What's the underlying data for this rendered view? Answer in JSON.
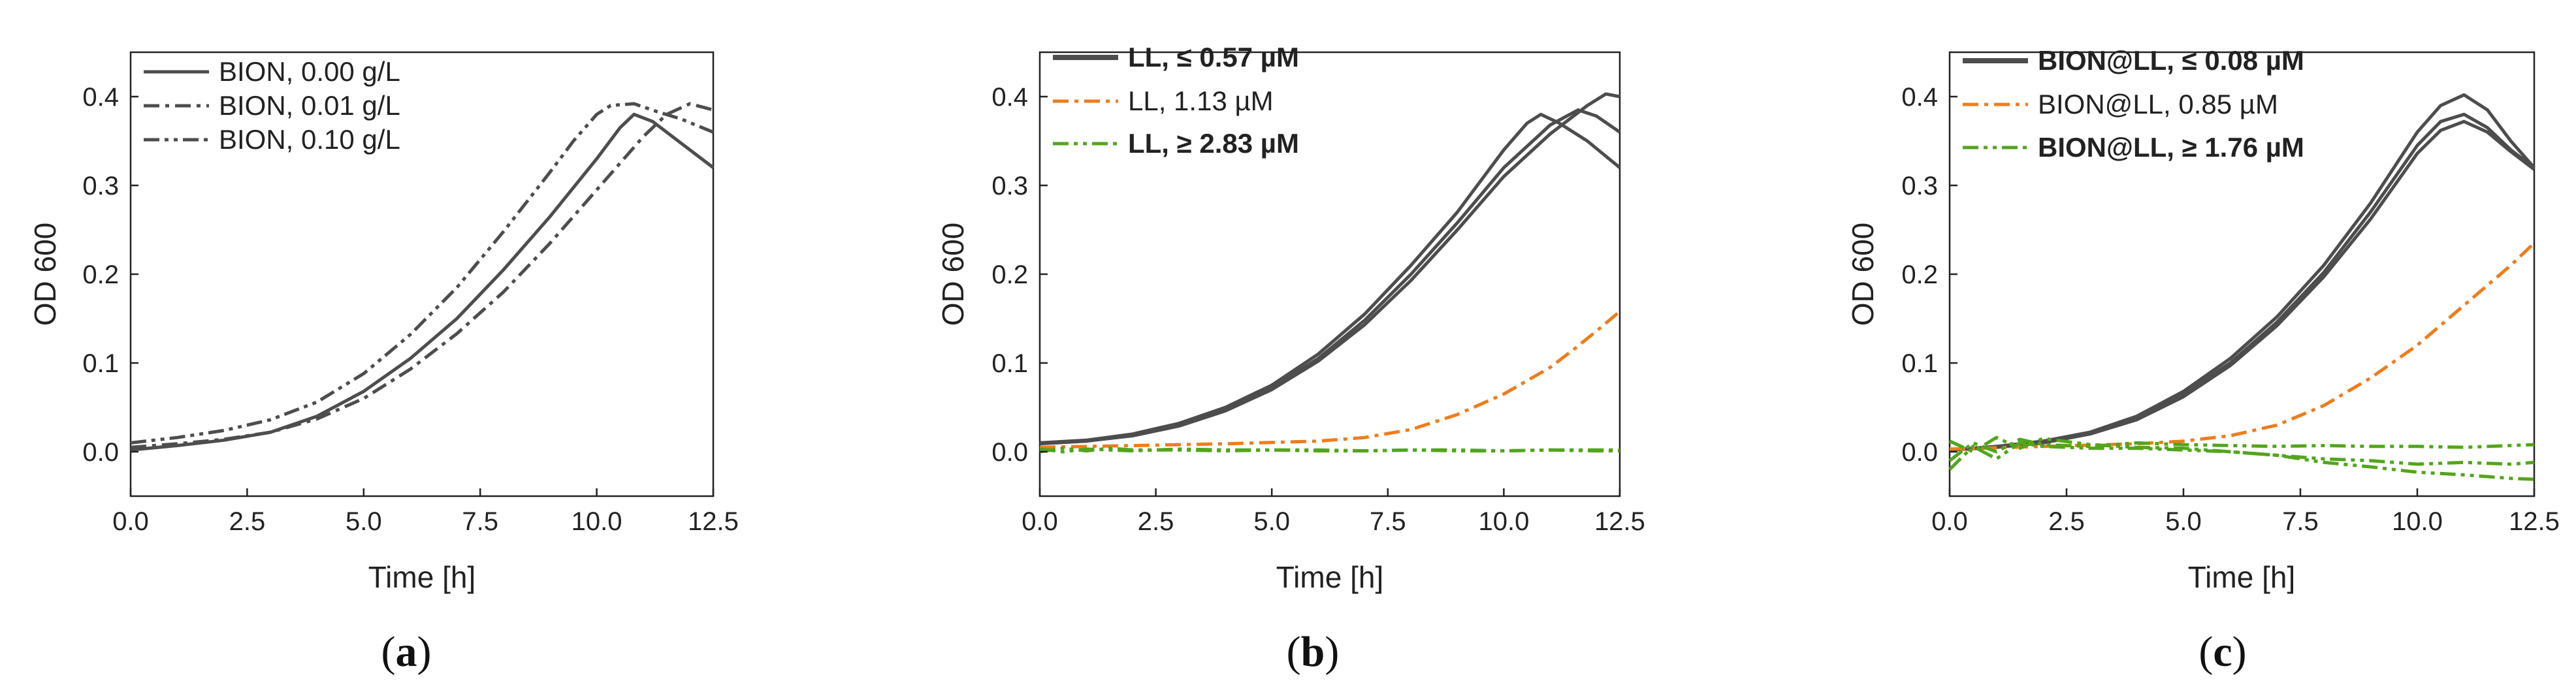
{
  "chart_data": [
    {
      "type": "line",
      "panel": "a",
      "xlabel": "Time [h]",
      "ylabel": "OD 600",
      "xlim": [
        0,
        12.5
      ],
      "ylim": [
        -0.05,
        0.45
      ],
      "xticks": [
        0,
        2.5,
        5,
        7.5,
        10,
        12.5
      ],
      "xtick_labels": [
        "0.0",
        "2.5",
        "5.0",
        "7.5",
        "10.0",
        "12.5"
      ],
      "yticks": [
        0,
        0.1,
        0.2,
        0.3,
        0.4
      ],
      "ytick_labels": [
        "0.0",
        "0.1",
        "0.2",
        "0.3",
        "0.4"
      ],
      "legend_position": "top-left",
      "series": [
        {
          "name": "BION, 0.00 g/L",
          "color": "#4d4d4d",
          "dash": "solid",
          "x": [
            0,
            1,
            2,
            3,
            4,
            5,
            6,
            7,
            8,
            9,
            10,
            10.5,
            10.8,
            11.2,
            11.8,
            12.5
          ],
          "y": [
            0.002,
            0.007,
            0.013,
            0.022,
            0.04,
            0.068,
            0.105,
            0.15,
            0.205,
            0.265,
            0.33,
            0.365,
            0.38,
            0.372,
            0.348,
            0.32
          ]
        },
        {
          "name": "BION, 0.01 g/L",
          "color": "#4d4d4d",
          "dash": "dashdot",
          "x": [
            0,
            1,
            2,
            3,
            4,
            5,
            6,
            7,
            8,
            9,
            10,
            11,
            11.5,
            12,
            12.5
          ],
          "y": [
            0.005,
            0.009,
            0.014,
            0.022,
            0.037,
            0.06,
            0.093,
            0.133,
            0.18,
            0.235,
            0.295,
            0.355,
            0.38,
            0.392,
            0.385
          ]
        },
        {
          "name": "BION, 0.10 g/L",
          "color": "#4d4d4d",
          "dash": "dashdotdot",
          "x": [
            0,
            1,
            2,
            3,
            4,
            5,
            6,
            7,
            8,
            9,
            9.5,
            10,
            10.3,
            10.8,
            11.3,
            11.8,
            12.5
          ],
          "y": [
            0.01,
            0.016,
            0.024,
            0.036,
            0.056,
            0.088,
            0.132,
            0.185,
            0.248,
            0.315,
            0.35,
            0.38,
            0.39,
            0.392,
            0.383,
            0.375,
            0.36
          ]
        }
      ]
    },
    {
      "type": "line",
      "panel": "b",
      "xlabel": "Time [h]",
      "ylabel": "OD 600",
      "xlim": [
        0,
        12.5
      ],
      "ylim": [
        -0.05,
        0.45
      ],
      "xticks": [
        0,
        2.5,
        5,
        7.5,
        10,
        12.5
      ],
      "xtick_labels": [
        "0.0",
        "2.5",
        "5.0",
        "7.5",
        "10.0",
        "12.5"
      ],
      "yticks": [
        0,
        0.1,
        0.2,
        0.3,
        0.4
      ],
      "ytick_labels": [
        "0.0",
        "0.1",
        "0.2",
        "0.3",
        "0.4"
      ],
      "legend_position": "top-left",
      "series": [
        {
          "name": "LL, ≤ 0.57 µM",
          "color": "#4d4d4d",
          "dash": "solid",
          "bold": true,
          "x": [
            0,
            1,
            2,
            3,
            4,
            5,
            6,
            7,
            8,
            9,
            10,
            10.5,
            10.8,
            11.2,
            11.8,
            12.5
          ],
          "y": [
            0.01,
            0.013,
            0.02,
            0.032,
            0.05,
            0.075,
            0.11,
            0.155,
            0.21,
            0.27,
            0.34,
            0.37,
            0.38,
            0.37,
            0.35,
            0.32
          ]
        },
        {
          "name": "",
          "color": "#4d4d4d",
          "dash": "solid",
          "x": [
            0,
            1,
            2,
            3,
            4,
            5,
            6,
            7,
            8,
            9,
            10,
            11,
            11.6,
            12,
            12.5
          ],
          "y": [
            0.01,
            0.012,
            0.019,
            0.03,
            0.048,
            0.072,
            0.105,
            0.148,
            0.2,
            0.258,
            0.32,
            0.368,
            0.385,
            0.378,
            0.36
          ]
        },
        {
          "name": "",
          "color": "#4d4d4d",
          "dash": "solid",
          "x": [
            0,
            1,
            2,
            3,
            4,
            5,
            6,
            7,
            8,
            9,
            10,
            11,
            11.8,
            12.2,
            12.5
          ],
          "y": [
            0.009,
            0.012,
            0.018,
            0.029,
            0.046,
            0.07,
            0.102,
            0.143,
            0.193,
            0.25,
            0.31,
            0.358,
            0.39,
            0.403,
            0.4
          ]
        },
        {
          "name": "LL, 1.13 µM",
          "color": "#ee7d1c",
          "dash": "dashdot",
          "x": [
            0,
            2,
            4,
            6,
            7,
            8,
            9,
            10,
            11,
            11.5,
            12,
            12.5
          ],
          "y": [
            0.005,
            0.007,
            0.009,
            0.012,
            0.016,
            0.025,
            0.042,
            0.065,
            0.095,
            0.115,
            0.136,
            0.158
          ]
        },
        {
          "name": "LL, ≥ 2.83 µM",
          "color": "#52a51c",
          "dash": "dashdotdot",
          "bold": true,
          "x": [
            0,
            0.5,
            1,
            1.5,
            2,
            3,
            4,
            5,
            6,
            7,
            8,
            9,
            10,
            11,
            12,
            12.5
          ],
          "y": [
            0.0,
            0.004,
            0.001,
            0.004,
            0.002,
            0.002,
            0.001,
            0.002,
            0.001,
            0.001,
            0.002,
            0.001,
            0.001,
            0.002,
            0.001,
            0.001
          ]
        },
        {
          "name": "",
          "color": "#52a51c",
          "dash": "dashdotdot",
          "x": [
            0,
            0.5,
            1,
            2,
            3,
            4,
            5,
            6,
            7,
            8,
            9,
            10,
            11,
            12,
            12.5
          ],
          "y": [
            0.003,
            0.0,
            0.003,
            0.001,
            0.003,
            0.002,
            0.002,
            0.002,
            0.001,
            0.002,
            0.002,
            0.001,
            0.002,
            0.002,
            0.002
          ]
        }
      ]
    },
    {
      "type": "line",
      "panel": "c",
      "xlabel": "Time [h]",
      "ylabel": "OD 600",
      "xlim": [
        0,
        12.5
      ],
      "ylim": [
        -0.05,
        0.45
      ],
      "xticks": [
        0,
        2.5,
        5,
        7.5,
        10,
        12.5
      ],
      "xtick_labels": [
        "0.0",
        "2.5",
        "5.0",
        "7.5",
        "10.0",
        "12.5"
      ],
      "yticks": [
        0,
        0.1,
        0.2,
        0.3,
        0.4
      ],
      "ytick_labels": [
        "0.0",
        "0.1",
        "0.2",
        "0.3",
        "0.4"
      ],
      "legend_position": "top-left",
      "series": [
        {
          "name": "BION@LL, ≤ 0.08 µM",
          "color": "#4d4d4d",
          "dash": "solid",
          "bold": true,
          "x": [
            0,
            1,
            2,
            3,
            4,
            5,
            6,
            7,
            8,
            9,
            10,
            10.5,
            11,
            11.5,
            12,
            12.5
          ],
          "y": [
            0.002,
            0.006,
            0.012,
            0.022,
            0.04,
            0.068,
            0.105,
            0.152,
            0.21,
            0.28,
            0.36,
            0.39,
            0.402,
            0.385,
            0.35,
            0.32
          ]
        },
        {
          "name": "",
          "color": "#4d4d4d",
          "dash": "solid",
          "x": [
            0,
            1,
            2,
            3,
            4,
            5,
            6,
            7,
            8,
            9,
            10,
            10.5,
            11,
            11.5,
            12,
            12.5
          ],
          "y": [
            0.002,
            0.005,
            0.011,
            0.021,
            0.038,
            0.065,
            0.1,
            0.146,
            0.202,
            0.27,
            0.345,
            0.372,
            0.38,
            0.365,
            0.34,
            0.32
          ]
        },
        {
          "name": "",
          "color": "#4d4d4d",
          "dash": "solid",
          "x": [
            0,
            1,
            2,
            3,
            4,
            5,
            6,
            7,
            8,
            9,
            10,
            10.5,
            11,
            11.5,
            12,
            12.5
          ],
          "y": [
            0.002,
            0.005,
            0.01,
            0.02,
            0.036,
            0.062,
            0.097,
            0.142,
            0.197,
            0.262,
            0.336,
            0.362,
            0.372,
            0.36,
            0.338,
            0.318
          ]
        },
        {
          "name": "BION@LL, 0.85 µM",
          "color": "#ee7d1c",
          "dash": "dashdot",
          "x": [
            0,
            2,
            4,
            5,
            6,
            7,
            8,
            9,
            10,
            11,
            12,
            12.5
          ],
          "y": [
            0.003,
            0.006,
            0.009,
            0.012,
            0.018,
            0.03,
            0.052,
            0.083,
            0.12,
            0.165,
            0.21,
            0.235
          ]
        },
        {
          "name": "BION@LL, ≥ 1.76 µM",
          "color": "#52a51c",
          "dash": "dashdotdot",
          "bold": true,
          "x": [
            0,
            0.5,
            1,
            1.5,
            2,
            3,
            4,
            5,
            6,
            7,
            8,
            9,
            10,
            11,
            12,
            12.5
          ],
          "y": [
            -0.01,
            0.01,
            0.0,
            0.014,
            0.008,
            0.006,
            0.01,
            0.008,
            0.007,
            0.006,
            0.007,
            0.006,
            0.006,
            0.005,
            0.007,
            0.008
          ]
        },
        {
          "name": "",
          "color": "#52a51c",
          "dash": "dashdotdot",
          "x": [
            0,
            0.5,
            1,
            1.5,
            2,
            3,
            4,
            5,
            6,
            7,
            8,
            9,
            10,
            11,
            12,
            12.5
          ],
          "y": [
            0.012,
            0.0,
            0.016,
            0.004,
            0.015,
            0.008,
            0.005,
            0.004,
            0.0,
            -0.004,
            -0.008,
            -0.01,
            -0.014,
            -0.012,
            -0.014,
            -0.012
          ]
        },
        {
          "name": "",
          "color": "#52a51c",
          "dash": "dashdotdot",
          "x": [
            0,
            0.5,
            1,
            1.5,
            2,
            3,
            4,
            5,
            6,
            7,
            8,
            9,
            10,
            11,
            12,
            12.5
          ],
          "y": [
            -0.02,
            0.006,
            -0.008,
            0.01,
            0.006,
            0.004,
            0.004,
            0.002,
            0.0,
            -0.004,
            -0.012,
            -0.017,
            -0.023,
            -0.026,
            -0.03,
            -0.031
          ]
        }
      ]
    }
  ],
  "panel_labels": {
    "a": "a",
    "b": "b",
    "c": "c"
  }
}
